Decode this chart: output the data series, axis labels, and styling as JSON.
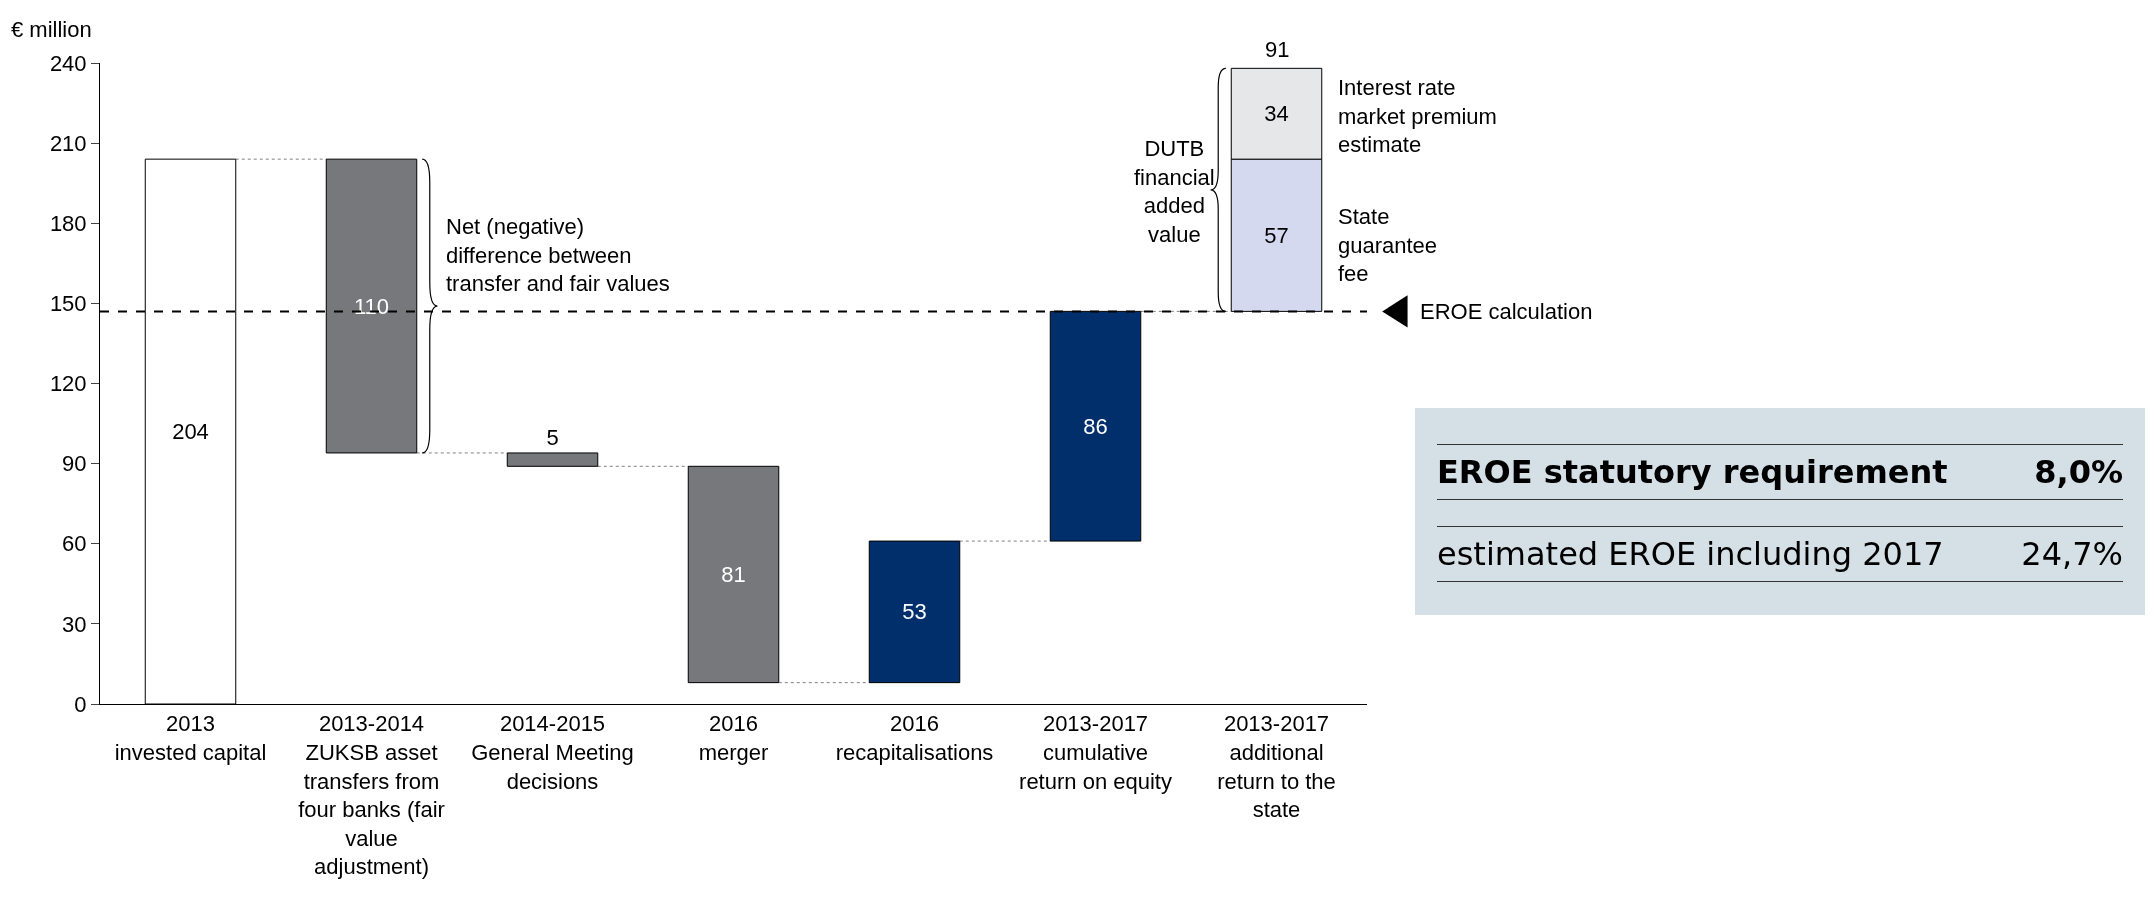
{
  "chart_data": {
    "type": "bar",
    "ylabel": "€ million",
    "categories": [
      "2013 invested capital",
      "2013-2014 ZUKSB asset transfers from four banks (fair value adjustment)",
      "2014-2015 General Meeting decisions",
      "2016 merger",
      "2016 recapitalisations",
      "2013-2017 cumulative return on equity",
      "2013-2017 additional return to the state"
    ],
    "stacked": true,
    "series": [
      {
        "values": [
          204,
          110,
          5,
          81,
          53,
          86,
          57
        ],
        "base": [
          0,
          94,
          89,
          8,
          8,
          61,
          147
        ],
        "colors": [
          "#ffffff",
          "#77787b",
          "#77787b",
          "#77787b",
          "#002f6c",
          "#002f6c",
          "#d4d9ef"
        ]
      },
      {
        "values": [
          null,
          null,
          null,
          null,
          null,
          null,
          34
        ],
        "base": [
          null,
          null,
          null,
          null,
          null,
          null,
          204
        ],
        "colors": [
          "#e6e7e8",
          "#e6e7e8",
          "#e6e7e8",
          "#e6e7e8",
          "#e6e7e8",
          "#e6e7e8",
          "#e6e7e8"
        ]
      }
    ],
    "data_labels": true,
    "totals": [
      null,
      null,
      null,
      null,
      null,
      null,
      "91"
    ],
    "ylim": [
      0,
      240
    ],
    "yticks": [
      0,
      30,
      60,
      90,
      120,
      150,
      180,
      210,
      240
    ],
    "grid": false,
    "ref_lines": [
      {
        "axis": "y",
        "value": 147,
        "label": "EROE calculation",
        "color": "#000000",
        "line_style": "dashed"
      }
    ],
    "annotations": [
      "Net (negative) difference between transfer and fair values",
      "DUTB financial added value",
      "Interest rate market premium estimate",
      "State guarantee fee",
      "EROE statutory requirement",
      "8,0%",
      "estimated EROE including 2017",
      "24,7%"
    ]
  }
}
